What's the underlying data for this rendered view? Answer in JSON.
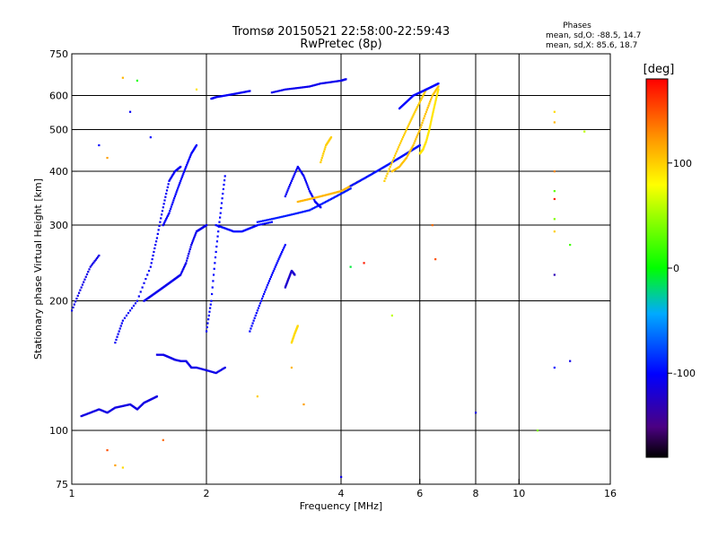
{
  "chart_data": {
    "type": "scatter",
    "title": "Tromsø 20150521 22:58:00-22:59:43",
    "subtitle": "RwPretec (8p)",
    "phase_box": {
      "heading": "Phases",
      "line_o": "mean, sd,O: -88.5, 14.7",
      "line_x": "mean, sd,X:  85.6, 18.7"
    },
    "xlabel": "Frequency [MHz]",
    "ylabel": "Stationary phase Virtual Height [km]",
    "x_scale": "log",
    "y_scale": "log",
    "xlim": [
      1,
      16
    ],
    "ylim": [
      75,
      750
    ],
    "x_ticks": [
      {
        "value": 1,
        "label": "1"
      },
      {
        "value": 2,
        "label": "2"
      },
      {
        "value": 4,
        "label": "4"
      },
      {
        "value": 6,
        "label": "6"
      },
      {
        "value": 8,
        "label": "8"
      },
      {
        "value": 10,
        "label": "10"
      },
      {
        "value": 16,
        "label": "16"
      }
    ],
    "y_ticks": [
      {
        "value": 75,
        "label": "75"
      },
      {
        "value": 100,
        "label": "100"
      },
      {
        "value": 200,
        "label": "200"
      },
      {
        "value": 300,
        "label": "300"
      },
      {
        "value": 400,
        "label": "400"
      },
      {
        "value": 500,
        "label": "500"
      },
      {
        "value": 600,
        "label": "600"
      },
      {
        "value": 750,
        "label": "750"
      }
    ],
    "grid": true,
    "x_gridlines": [
      2,
      4,
      6,
      8,
      10
    ],
    "y_gridlines": [
      100,
      200,
      300,
      400,
      500,
      600
    ],
    "colorbar": {
      "label": "[deg]",
      "range": [
        -180,
        180
      ],
      "ticks": [
        {
          "value": 100,
          "label": "100"
        },
        {
          "value": 0,
          "label": "0"
        },
        {
          "value": -100,
          "label": "-100"
        }
      ]
    },
    "traces": [
      {
        "x": [
          1.0,
          1.05,
          1.1,
          1.15
        ],
        "y": [
          190,
          215,
          240,
          255
        ],
        "phase": -110
      },
      {
        "x": [
          1.05,
          1.1,
          1.15,
          1.2,
          1.25,
          1.3,
          1.35,
          1.4,
          1.45,
          1.5,
          1.55
        ],
        "y": [
          108,
          110,
          112,
          110,
          113,
          114,
          115,
          112,
          116,
          118,
          120
        ],
        "phase": -112
      },
      {
        "x": [
          1.25,
          1.3,
          1.4,
          1.5,
          1.55,
          1.6,
          1.65,
          1.7,
          1.75
        ],
        "y": [
          160,
          180,
          200,
          240,
          280,
          330,
          380,
          400,
          410
        ],
        "phase": -105
      },
      {
        "x": [
          1.45,
          1.5,
          1.55,
          1.6,
          1.65,
          1.7,
          1.75,
          1.8,
          1.85,
          1.9,
          1.95,
          2.0
        ],
        "y": [
          200,
          205,
          210,
          215,
          220,
          225,
          230,
          245,
          270,
          290,
          295,
          300
        ],
        "phase": -108
      },
      {
        "x": [
          1.55,
          1.6,
          1.65,
          1.7,
          1.75,
          1.8,
          1.85,
          1.9,
          2.0,
          2.1,
          2.2
        ],
        "y": [
          150,
          150,
          148,
          146,
          145,
          145,
          140,
          140,
          138,
          136,
          140
        ],
        "phase": -110
      },
      {
        "x": [
          1.6,
          1.65,
          1.7,
          1.75,
          1.8,
          1.85,
          1.9
        ],
        "y": [
          300,
          320,
          350,
          380,
          410,
          440,
          460
        ],
        "phase": -102
      },
      {
        "x": [
          2.0,
          2.05,
          2.1,
          2.15,
          2.2
        ],
        "y": [
          170,
          200,
          260,
          320,
          390
        ],
        "phase": -100
      },
      {
        "x": [
          2.05,
          2.1,
          2.2,
          2.3,
          2.4,
          2.5
        ],
        "y": [
          590,
          595,
          600,
          605,
          610,
          615
        ],
        "phase": -105
      },
      {
        "x": [
          2.1,
          2.2,
          2.3,
          2.4,
          2.5,
          2.6,
          2.8
        ],
        "y": [
          300,
          295,
          290,
          290,
          295,
          300,
          305
        ],
        "phase": -98
      },
      {
        "x": [
          2.5,
          2.6,
          2.7,
          2.8,
          2.9,
          3.0
        ],
        "y": [
          170,
          190,
          210,
          230,
          250,
          270
        ],
        "phase": -100
      },
      {
        "x": [
          2.6,
          2.8,
          3.0,
          3.2,
          3.4,
          3.6,
          3.8,
          4.0,
          4.2
        ],
        "y": [
          305,
          310,
          315,
          320,
          325,
          335,
          345,
          355,
          365
        ],
        "phase": -92
      },
      {
        "x": [
          2.8,
          3.0,
          3.2,
          3.4,
          3.6,
          3.8,
          4.0,
          4.1
        ],
        "y": [
          610,
          620,
          625,
          630,
          640,
          645,
          650,
          655
        ],
        "phase": -108
      },
      {
        "x": [
          3.0,
          3.05,
          3.1,
          3.15
        ],
        "y": [
          215,
          225,
          235,
          230
        ],
        "phase": -120
      },
      {
        "x": [
          3.0,
          3.1,
          3.2,
          3.3,
          3.4,
          3.5,
          3.6
        ],
        "y": [
          350,
          380,
          410,
          390,
          360,
          340,
          330
        ],
        "phase": -105
      },
      {
        "x": [
          3.1,
          3.15,
          3.2
        ],
        "y": [
          160,
          168,
          175
        ],
        "phase": 95
      },
      {
        "x": [
          3.2,
          3.4,
          3.6,
          3.8,
          4.0,
          4.2,
          4.4
        ],
        "y": [
          340,
          345,
          350,
          355,
          360,
          370,
          380
        ],
        "phase": 110
      },
      {
        "x": [
          3.6,
          3.7,
          3.8
        ],
        "y": [
          420,
          460,
          480
        ],
        "phase": 100
      },
      {
        "x": [
          4.2,
          4.4,
          4.6,
          4.8,
          5.0,
          5.2,
          5.4,
          5.6,
          5.8,
          6.0
        ],
        "y": [
          370,
          380,
          390,
          400,
          410,
          420,
          430,
          440,
          450,
          460
        ],
        "phase": -95
      },
      {
        "x": [
          5.0,
          5.2,
          5.4,
          5.6,
          5.8,
          6.0,
          6.2
        ],
        "y": [
          380,
          420,
          460,
          500,
          540,
          580,
          620
        ],
        "phase": 100
      },
      {
        "x": [
          5.2,
          5.4,
          5.6,
          5.8,
          6.0,
          6.2,
          6.4,
          6.6
        ],
        "y": [
          400,
          410,
          430,
          460,
          500,
          550,
          600,
          630
        ],
        "phase": 105
      },
      {
        "x": [
          5.4,
          5.6,
          5.8,
          6.0,
          6.2,
          6.4,
          6.6
        ],
        "y": [
          560,
          580,
          600,
          610,
          620,
          630,
          640
        ],
        "phase": -100
      },
      {
        "x": [
          6.0,
          6.1,
          6.2,
          6.3,
          6.4,
          6.5,
          6.6
        ],
        "y": [
          440,
          450,
          470,
          500,
          540,
          580,
          620
        ],
        "phase": 90
      }
    ],
    "scatter_points": [
      {
        "x": 1.15,
        "y": 460,
        "phase": -100
      },
      {
        "x": 1.2,
        "y": 430,
        "phase": 120
      },
      {
        "x": 1.3,
        "y": 660,
        "phase": 110
      },
      {
        "x": 1.35,
        "y": 550,
        "phase": -105
      },
      {
        "x": 1.4,
        "y": 650,
        "phase": 5
      },
      {
        "x": 1.5,
        "y": 480,
        "phase": -100
      },
      {
        "x": 1.2,
        "y": 90,
        "phase": 150
      },
      {
        "x": 1.25,
        "y": 83,
        "phase": 120
      },
      {
        "x": 1.3,
        "y": 82,
        "phase": 95
      },
      {
        "x": 1.6,
        "y": 95,
        "phase": 140
      },
      {
        "x": 1.9,
        "y": 620,
        "phase": 90
      },
      {
        "x": 2.6,
        "y": 120,
        "phase": 100
      },
      {
        "x": 3.1,
        "y": 140,
        "phase": 110
      },
      {
        "x": 3.3,
        "y": 115,
        "phase": 120
      },
      {
        "x": 4.0,
        "y": 78,
        "phase": -110
      },
      {
        "x": 4.2,
        "y": 240,
        "phase": -10
      },
      {
        "x": 4.5,
        "y": 245,
        "phase": 170
      },
      {
        "x": 5.2,
        "y": 185,
        "phase": 60
      },
      {
        "x": 6.4,
        "y": 300,
        "phase": 140
      },
      {
        "x": 6.5,
        "y": 250,
        "phase": 150
      },
      {
        "x": 8.0,
        "y": 110,
        "phase": -110
      },
      {
        "x": 11.0,
        "y": 100,
        "phase": 40
      },
      {
        "x": 12.0,
        "y": 550,
        "phase": 95
      },
      {
        "x": 12.0,
        "y": 520,
        "phase": 110
      },
      {
        "x": 12.0,
        "y": 400,
        "phase": 130
      },
      {
        "x": 12.0,
        "y": 360,
        "phase": 30
      },
      {
        "x": 12.0,
        "y": 345,
        "phase": 170
      },
      {
        "x": 12.0,
        "y": 310,
        "phase": 40
      },
      {
        "x": 12.0,
        "y": 290,
        "phase": 100
      },
      {
        "x": 12.0,
        "y": 230,
        "phase": -130
      },
      {
        "x": 12.0,
        "y": 140,
        "phase": -100
      },
      {
        "x": 13.0,
        "y": 270,
        "phase": 20
      },
      {
        "x": 13.0,
        "y": 145,
        "phase": -110
      },
      {
        "x": 14.0,
        "y": 495,
        "phase": 60
      }
    ]
  }
}
